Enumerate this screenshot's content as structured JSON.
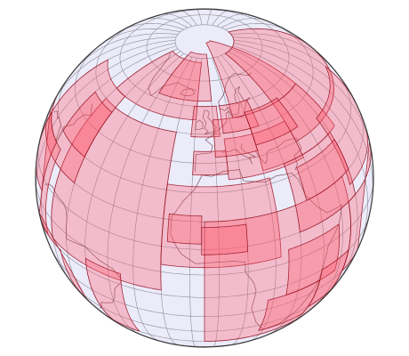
{
  "map": {
    "projection": "orthographic",
    "center": {
      "lon": -5,
      "lat": 35
    },
    "graticule_step_deg": 10,
    "colors": {
      "ocean": "#ecebfa",
      "graticule": "#8e8e98",
      "footprint_fill": "#ff5b6c",
      "footprint_fill_opacity": 0.32,
      "footprint_stroke": "#9a1020",
      "coastline": "#5a2a30",
      "globe_outline": "#3a3a3a"
    },
    "footprints": [
      {
        "type": "band",
        "lon0": -70,
        "lon1": -10,
        "lat0": 55,
        "lat1": 78
      },
      {
        "type": "band",
        "lon0": -40,
        "lon1": 0,
        "lat0": 62,
        "lat1": 82
      },
      {
        "type": "band",
        "lon0": 12,
        "lon1": 65,
        "lat0": 55,
        "lat1": 88
      },
      {
        "type": "band",
        "lon0": 40,
        "lon1": 120,
        "lat0": 40,
        "lat1": 80
      },
      {
        "type": "band",
        "lon0": 20,
        "lon1": 65,
        "lat0": 35,
        "lat1": 55
      },
      {
        "type": "band",
        "lon0": -70,
        "lon1": -20,
        "lat0": -8,
        "lat1": 50
      },
      {
        "type": "band",
        "lon0": -100,
        "lon1": -60,
        "lat0": 20,
        "lat1": 55
      },
      {
        "type": "band",
        "lon0": -110,
        "lon1": -75,
        "lat0": -10,
        "lat1": 25
      },
      {
        "type": "band",
        "lon0": -95,
        "lon1": -65,
        "lat0": -55,
        "lat1": -10
      },
      {
        "type": "band",
        "lon0": -50,
        "lon1": -35,
        "lat0": -40,
        "lat1": -5
      },
      {
        "type": "band",
        "lon0": -20,
        "lon1": 22,
        "lat0": 3,
        "lat1": 32
      },
      {
        "type": "band",
        "lon0": -5,
        "lon1": 55,
        "lat0": -40,
        "lat1": 20
      },
      {
        "type": "band",
        "lon0": 5,
        "lon1": 40,
        "lat0": 34,
        "lat1": 48
      },
      {
        "type": "band",
        "lon0": 30,
        "lon1": 60,
        "lat0": 10,
        "lat1": 35
      },
      {
        "type": "band",
        "lon0": 55,
        "lon1": 100,
        "lat0": -20,
        "lat1": 10
      },
      {
        "type": "band",
        "lon0": 58,
        "lon1": 100,
        "lat0": 15,
        "lat1": 42
      },
      {
        "type": "band",
        "lon0": -12,
        "lon1": 3,
        "lat0": 49,
        "lat1": 60
      },
      {
        "type": "band",
        "lon0": -10,
        "lon1": 5,
        "lat0": 36,
        "lat1": 44
      },
      {
        "type": "band",
        "lon0": -18,
        "lon1": -6,
        "lat0": 12,
        "lat1": 22
      },
      {
        "type": "band",
        "lon0": -6,
        "lon1": 10,
        "lat0": 8,
        "lat1": 18
      },
      {
        "type": "band",
        "lon0": 0,
        "lon1": 20,
        "lat0": 42,
        "lat1": 55
      },
      {
        "type": "band",
        "lon0": 5,
        "lon1": 25,
        "lat0": 50,
        "lat1": 60
      },
      {
        "type": "band",
        "lon0": 20,
        "lon1": 45,
        "lat0": 44,
        "lat1": 56
      },
      {
        "type": "band",
        "lon0": -80,
        "lon1": -60,
        "lat0": 30,
        "lat1": 48
      },
      {
        "type": "band",
        "lon0": -100,
        "lon1": -80,
        "lat0": 5,
        "lat1": 25
      },
      {
        "type": "band",
        "lon0": 18,
        "lon1": 40,
        "lat0": -35,
        "lat1": -15
      },
      {
        "type": "band",
        "lon0": 25,
        "lon1": 48,
        "lat0": -15,
        "lat1": 5
      },
      {
        "type": "band",
        "lon0": 40,
        "lon1": 55,
        "lat0": -30,
        "lat1": -10
      },
      {
        "type": "band",
        "lon0": 35,
        "lon1": 60,
        "lat0": 20,
        "lat1": 32
      }
    ]
  }
}
